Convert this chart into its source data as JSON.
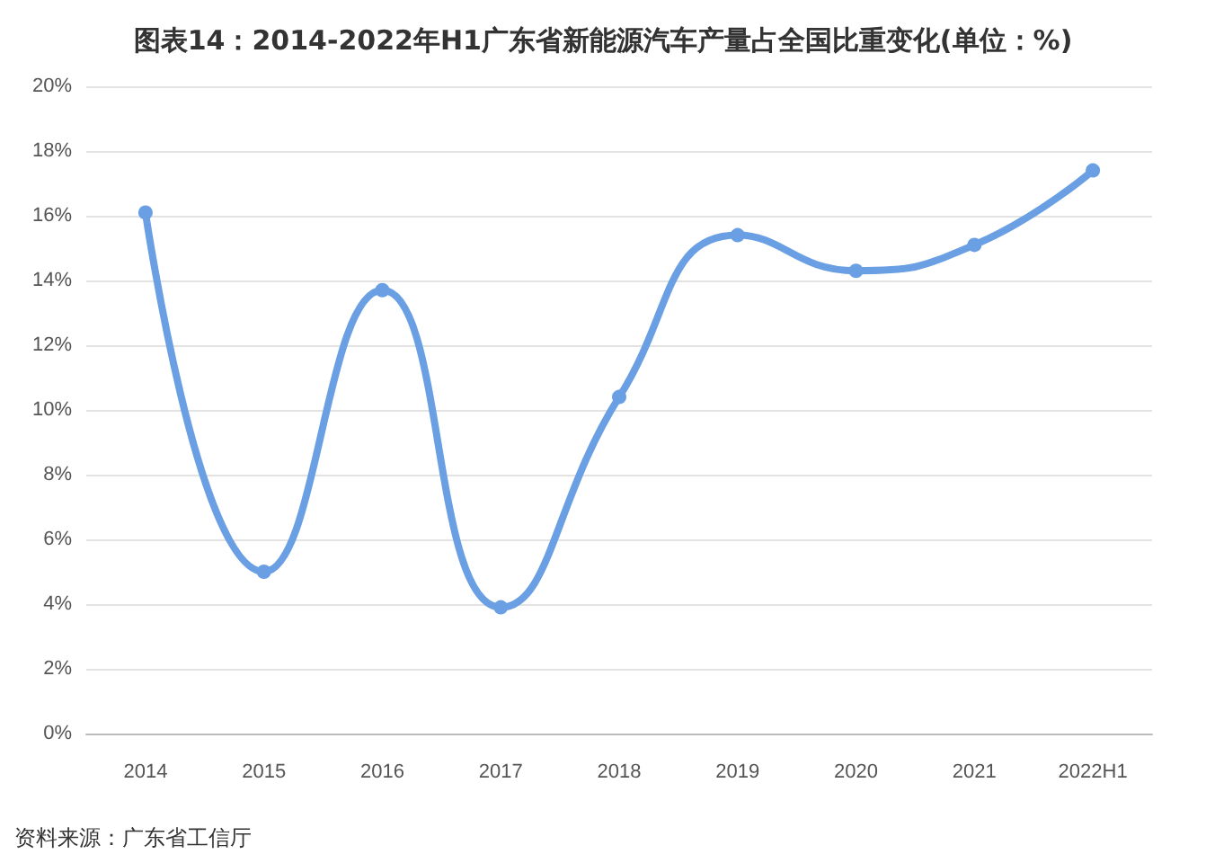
{
  "chart_data": {
    "type": "line",
    "title": "图表14：2014-2022年H1广东省新能源汽车产量占全国比重变化(单位：%)",
    "categories": [
      "2014",
      "2015",
      "2016",
      "2017",
      "2018",
      "2019",
      "2020",
      "2021",
      "2022H1"
    ],
    "series": [
      {
        "color": "#6a9fe3",
        "values": [
          16.1,
          5.0,
          13.7,
          3.9,
          10.4,
          15.4,
          14.3,
          15.1,
          17.4
        ]
      }
    ],
    "ylim": [
      0,
      20
    ],
    "yticks": [
      {
        "value": 0,
        "label": "0%"
      },
      {
        "value": 2,
        "label": "2%"
      },
      {
        "value": 4,
        "label": "4%"
      },
      {
        "value": 6,
        "label": "6%"
      },
      {
        "value": 8,
        "label": "8%"
      },
      {
        "value": 10,
        "label": "10%"
      },
      {
        "value": 12,
        "label": "12%"
      },
      {
        "value": 14,
        "label": "14%"
      },
      {
        "value": 16,
        "label": "16%"
      },
      {
        "value": 18,
        "label": "18%"
      },
      {
        "value": 20,
        "label": "20%"
      }
    ],
    "grid": "y",
    "marker": "circle",
    "line_style": "solid",
    "annotations": [
      "资料来源：广东省工信厅"
    ]
  }
}
